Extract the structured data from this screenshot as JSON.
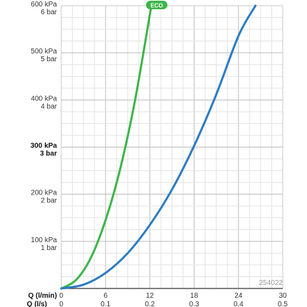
{
  "chart_data": {
    "type": "line",
    "x_axis_title": "Q (l/min)",
    "x_ticks": [
      "0",
      "6",
      "12",
      "18",
      "24",
      "30"
    ],
    "x2_axis_title": "Q (l/s)",
    "x2_ticks": [
      "0",
      "0.1",
      "0.2",
      "0.3",
      "0.4",
      "0.5"
    ],
    "xlim": [
      0,
      30
    ],
    "ylim": [
      0,
      600
    ],
    "y_ticks": [
      {
        "value": 600,
        "kpa": "600 kPa",
        "bar": "6 bar",
        "bold": false
      },
      {
        "value": 500,
        "kpa": "500 kPa",
        "bar": "5 bar",
        "bold": false
      },
      {
        "value": 400,
        "kpa": "400 kPa",
        "bar": "4 bar",
        "bold": false
      },
      {
        "value": 300,
        "kpa": "300 kPa",
        "bar": "3 bar",
        "bold": true
      },
      {
        "value": 200,
        "kpa": "200 kPa",
        "bar": "2 bar",
        "bold": false
      },
      {
        "value": 100,
        "kpa": "100 kPa",
        "bar": "1 bar",
        "bold": false
      }
    ],
    "grid": true,
    "series": [
      {
        "label": "ECO",
        "color": "#3db54a",
        "x": [
          0,
          2,
          4,
          6,
          8,
          10,
          12.2
        ],
        "y": [
          0,
          18,
          65,
          145,
          255,
          400,
          600
        ]
      },
      {
        "color": "#2d7cc1",
        "x": [
          0,
          3,
          6,
          9,
          12,
          15,
          18,
          21,
          24,
          26.3
        ],
        "y": [
          0,
          8,
          33,
          75,
          135,
          210,
          303,
          412,
          536,
          600
        ]
      }
    ],
    "code_label": "254022"
  }
}
